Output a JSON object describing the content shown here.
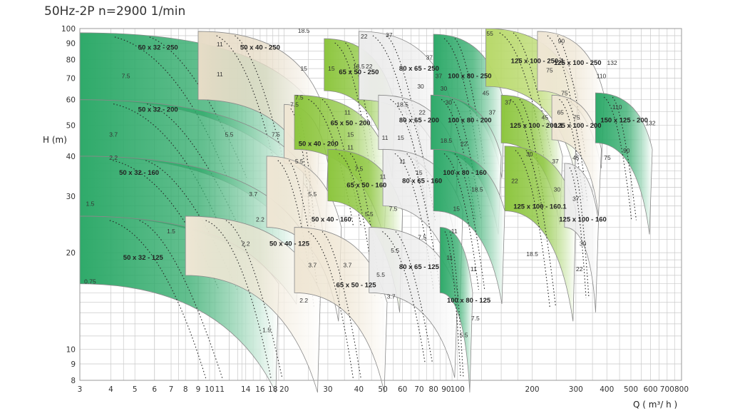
{
  "title": "50Hz-2P n=2900 1/min",
  "chart_data": {
    "type": "area",
    "title": "50Hz-2P n=2900 1/min",
    "xlabel": "Q ( m³/ h )",
    "ylabel": "H (m)",
    "x_scale": "log",
    "y_scale": "log",
    "xlim": [
      3,
      800
    ],
    "ylim": [
      8,
      100
    ],
    "x_ticks": [
      "3",
      "4",
      "5",
      "6",
      "7",
      "8",
      "9",
      "10",
      "11",
      "14",
      "16",
      "18",
      "20",
      "30",
      "40",
      "50",
      "60",
      "70",
      "80",
      "90",
      "100",
      "200",
      "300",
      "400",
      "500",
      "600",
      "700",
      "800"
    ],
    "x_tick_values": [
      3,
      4,
      5,
      6,
      7,
      8,
      9,
      10,
      11,
      14,
      16,
      18,
      20,
      30,
      40,
      50,
      60,
      70,
      80,
      90,
      100,
      200,
      300,
      400,
      500,
      600,
      700,
      800
    ],
    "y_ticks": [
      "8",
      "9",
      "10",
      "20",
      "30",
      "40",
      "50",
      "60",
      "70",
      "80",
      "90",
      "100"
    ],
    "y_tick_values": [
      8,
      9,
      10,
      20,
      30,
      40,
      50,
      60,
      70,
      80,
      90,
      100
    ],
    "pumps": [
      {
        "model": "50 x 32 - 250",
        "color": "#2faa6a",
        "q": [
          3,
          26
        ],
        "h_top": [
          97,
          58
        ],
        "h_bot": [
          60,
          38
        ],
        "label_q": 6.2,
        "label_h": 86,
        "kw": [
          {
            "t": "11",
            "q": 11,
            "h": 88
          },
          {
            "t": "11",
            "q": 11,
            "h": 71
          },
          {
            "t": "7.5",
            "q": 4.6,
            "h": 70
          }
        ]
      },
      {
        "model": "50 x 40 - 250",
        "color": "#e7dcc7",
        "q": [
          9,
          28
        ],
        "h_top": [
          98,
          60
        ],
        "h_bot": [
          60,
          40
        ],
        "label_q": 16,
        "label_h": 86,
        "kw": [
          {
            "t": "15",
            "q": 24,
            "h": 74
          }
        ]
      },
      {
        "model": "50 x 32 - 200",
        "color": "#2faa6a",
        "q": [
          3,
          24
        ],
        "h_top": [
          60,
          37
        ],
        "h_bot": [
          40,
          26
        ],
        "label_q": 6.2,
        "label_h": 55,
        "kw": [
          {
            "t": "3.7",
            "q": 4.1,
            "h": 46
          },
          {
            "t": "5.5",
            "q": 12,
            "h": 46
          },
          {
            "t": "7.5",
            "q": 18.5,
            "h": 46
          },
          {
            "t": "7.5",
            "q": 22,
            "h": 57
          },
          {
            "t": "2.2",
            "q": 4.1,
            "h": 39
          }
        ]
      },
      {
        "model": "50 x 32 - 160",
        "color": "#2faa6a",
        "q": [
          3,
          23
        ],
        "h_top": [
          40,
          24
        ],
        "h_bot": [
          26,
          17
        ],
        "label_q": 5.2,
        "label_h": 35,
        "kw": [
          {
            "t": "1.5",
            "q": 3.3,
            "h": 28
          },
          {
            "t": "3.7",
            "q": 15,
            "h": 30
          }
        ]
      },
      {
        "model": "50 x 32 - 125",
        "color": "#2faa6a",
        "q": [
          3,
          19
        ],
        "h_top": [
          26,
          16
        ],
        "h_bot": [
          16,
          9
        ],
        "label_q": 5.4,
        "label_h": 19,
        "kw": [
          {
            "t": "0.75",
            "q": 3.3,
            "h": 16
          },
          {
            "t": "1.5",
            "q": 7,
            "h": 23
          },
          {
            "t": "2.2",
            "q": 14,
            "h": 21
          },
          {
            "t": "1.5",
            "q": 17,
            "h": 11.3
          }
        ]
      },
      {
        "model": "50 x 40 - 200",
        "color": "#efe6d4",
        "q": [
          20,
          30
        ],
        "h_top": [
          58,
          38
        ],
        "h_bot": [
          38,
          25
        ],
        "label_q": 27.5,
        "label_h": 43,
        "kw": [
          {
            "t": "5.5",
            "q": 23,
            "h": 38
          }
        ]
      },
      {
        "model": "50 x 40 - 160",
        "color": "#efe6d4",
        "q": [
          17,
          34
        ],
        "h_top": [
          40,
          24
        ],
        "h_bot": [
          24,
          15
        ],
        "label_q": 31,
        "label_h": 25,
        "kw": [
          {
            "t": "2.2",
            "q": 16,
            "h": 25
          },
          {
            "t": "5.5",
            "q": 26,
            "h": 30
          }
        ]
      },
      {
        "model": "50 x 40 - 125",
        "color": "#efe6d4",
        "q": [
          8,
          28
        ],
        "h_top": [
          26,
          15
        ],
        "h_bot": [
          17,
          9
        ],
        "label_q": 21,
        "label_h": 21,
        "kw": [
          {
            "t": "3.7",
            "q": 26,
            "h": 18
          }
        ]
      },
      {
        "model": "65 x 50 - 250",
        "color": "#8dc63f",
        "q": [
          29,
          56
        ],
        "h_top": [
          93,
          58
        ],
        "h_bot": [
          64,
          42
        ],
        "label_q": 40,
        "label_h": 72,
        "kw": [
          {
            "t": "15",
            "q": 31,
            "h": 74
          },
          {
            "t": "18.5",
            "q": 40,
            "h": 75
          },
          {
            "t": "22",
            "q": 44,
            "h": 75
          },
          {
            "t": "18.5",
            "q": 24,
            "h": 97
          }
        ]
      },
      {
        "model": "65 x 50 - 200",
        "color": "#8dc63f",
        "q": [
          22,
          52
        ],
        "h_top": [
          62,
          40
        ],
        "h_bot": [
          42,
          27
        ],
        "label_q": 37,
        "label_h": 50,
        "kw": [
          {
            "t": "7.5",
            "q": 23,
            "h": 60
          },
          {
            "t": "11",
            "q": 36,
            "h": 54
          },
          {
            "t": "15",
            "q": 37,
            "h": 46
          },
          {
            "t": "11",
            "q": 37,
            "h": 42
          }
        ]
      },
      {
        "model": "65 x 50 - 160",
        "color": "#8dc63f",
        "q": [
          30,
          60
        ],
        "h_top": [
          42,
          27
        ],
        "h_bot": [
          29,
          16
        ],
        "label_q": 43,
        "label_h": 32,
        "kw": [
          {
            "t": "7.5",
            "q": 40,
            "h": 36
          },
          {
            "t": "11",
            "q": 50,
            "h": 34
          },
          {
            "t": "5.5",
            "q": 44,
            "h": 26
          }
        ]
      },
      {
        "model": "65 x 50 - 125",
        "color": "#efe6d4",
        "q": [
          22,
          52
        ],
        "h_top": [
          24,
          14
        ],
        "h_bot": [
          15,
          9
        ],
        "label_q": 39,
        "label_h": 15.6,
        "kw": [
          {
            "t": "3.7",
            "q": 36,
            "h": 18
          },
          {
            "t": "5.5",
            "q": 49,
            "h": 16.8
          },
          {
            "t": "2.2",
            "q": 24,
            "h": 14
          }
        ]
      },
      {
        "model": "80 x 65 - 250",
        "color": "#ececec",
        "q": [
          40,
          95
        ],
        "h_top": [
          98,
          58
        ],
        "h_bot": [
          60,
          40
        ],
        "label_q": 70,
        "label_h": 74,
        "kw": [
          {
            "t": "22",
            "q": 42,
            "h": 93
          },
          {
            "t": "30",
            "q": 71,
            "h": 65
          },
          {
            "t": "37",
            "q": 84,
            "h": 70
          }
        ]
      },
      {
        "model": "80 x 65 - 200",
        "color": "#ececec",
        "q": [
          48,
          100
        ],
        "h_top": [
          62,
          40
        ],
        "h_bot": [
          42,
          28
        ],
        "label_q": 70,
        "label_h": 51,
        "kw": [
          {
            "t": "18.5",
            "q": 60,
            "h": 57
          },
          {
            "t": "22",
            "q": 72,
            "h": 54
          },
          {
            "t": "15",
            "q": 59,
            "h": 45
          },
          {
            "t": "11",
            "q": 51,
            "h": 45
          }
        ]
      },
      {
        "model": "80 x 65 - 160",
        "color": "#ececec",
        "q": [
          50,
          105
        ],
        "h_top": [
          42,
          27
        ],
        "h_bot": [
          28,
          17
        ],
        "label_q": 72,
        "label_h": 33,
        "kw": [
          {
            "t": "11",
            "q": 60,
            "h": 38
          },
          {
            "t": "15",
            "q": 70,
            "h": 35
          },
          {
            "t": "7.5",
            "q": 55,
            "h": 27
          }
        ]
      },
      {
        "model": "80 x 65 - 125",
        "color": "#ececec",
        "q": [
          44,
          100
        ],
        "h_top": [
          24,
          15
        ],
        "h_bot": [
          15,
          10
        ],
        "label_q": 70,
        "label_h": 17.8,
        "kw": [
          {
            "t": "5.5",
            "q": 56,
            "h": 20
          },
          {
            "t": "7.5",
            "q": 72,
            "h": 22
          },
          {
            "t": "11",
            "q": 93,
            "h": 19
          },
          {
            "t": "3.7",
            "q": 54,
            "h": 14.4
          }
        ]
      },
      {
        "model": "100 x 80 - 250",
        "color": "#2faa6a",
        "q": [
          80,
          155
        ],
        "h_top": [
          96,
          58
        ],
        "h_bot": [
          62,
          42
        ],
        "label_q": 112,
        "label_h": 70,
        "kw": [
          {
            "t": "37",
            "q": 77,
            "h": 80
          },
          {
            "t": "30",
            "q": 88,
            "h": 64
          },
          {
            "t": "45",
            "q": 130,
            "h": 62
          }
        ]
      },
      {
        "model": "100 x 80 - 200",
        "color": "#2faa6a",
        "q": [
          78,
          150
        ],
        "h_top": [
          62,
          40
        ],
        "h_bot": [
          42,
          28
        ],
        "label_q": 112,
        "label_h": 51,
        "kw": [
          {
            "t": "30",
            "q": 92,
            "h": 58
          },
          {
            "t": "37",
            "q": 138,
            "h": 54
          },
          {
            "t": "18.5",
            "q": 90,
            "h": 44
          },
          {
            "t": "22",
            "q": 106,
            "h": 43
          }
        ]
      },
      {
        "model": "100 x 80 - 160",
        "color": "#2faa6a",
        "q": [
          80,
          155
        ],
        "h_top": [
          42,
          27
        ],
        "h_bot": [
          27,
          17
        ],
        "label_q": 107,
        "label_h": 35,
        "kw": [
          {
            "t": "18.5",
            "q": 120,
            "h": 31
          },
          {
            "t": "15",
            "q": 99,
            "h": 27
          },
          {
            "t": "11",
            "q": 97,
            "h": 23
          }
        ]
      },
      {
        "model": "100 x 80 - 125",
        "color": "#2faa6a",
        "q": [
          85,
          115
        ],
        "h_top": [
          24,
          15
        ],
        "h_bot": [
          15,
          9
        ],
        "label_q": 111,
        "label_h": 14,
        "kw": [
          {
            "t": "11",
            "q": 116,
            "h": 17.5
          },
          {
            "t": "7.5",
            "q": 118,
            "h": 12.3
          },
          {
            "t": "5.5",
            "q": 106,
            "h": 10.9
          }
        ]
      },
      {
        "model": "125 x 100 - 250.1",
        "color": "#b8d96a",
        "q": [
          130,
          305
        ],
        "h_top": [
          100,
          62
        ],
        "h_bot": [
          66,
          44
        ],
        "label_q": 210,
        "label_h": 78,
        "kw": [
          {
            "t": "37",
            "q": 53,
            "h": 94
          },
          {
            "t": "55",
            "q": 135,
            "h": 95
          },
          {
            "t": "75",
            "q": 235,
            "h": 73
          },
          {
            "t": "75",
            "q": 270,
            "h": 62
          }
        ]
      },
      {
        "model": "125 x 100 - 250",
        "color": "#efe6d4",
        "q": [
          210,
          390
        ],
        "h_top": [
          98,
          62
        ],
        "h_bot": [
          64,
          45
        ],
        "label_q": 305,
        "label_h": 77,
        "kw": [
          {
            "t": "90",
            "q": 262,
            "h": 90
          },
          {
            "t": "110",
            "q": 380,
            "h": 70
          },
          {
            "t": "132",
            "q": 420,
            "h": 77
          }
        ]
      },
      {
        "model": "125 x 100 - 200.1",
        "color": "#8dc63f",
        "q": [
          150,
          265
        ],
        "h_top": [
          62,
          40
        ],
        "h_bot": [
          44,
          30
        ],
        "label_q": 208,
        "label_h": 49,
        "kw": [
          {
            "t": "37",
            "q": 160,
            "h": 58
          },
          {
            "t": "45",
            "q": 225,
            "h": 52
          },
          {
            "t": "30",
            "q": 195,
            "h": 40
          },
          {
            "t": "37",
            "q": 248,
            "h": 38
          }
        ]
      },
      {
        "model": "125 x 100 - 200",
        "color": "#efe6d4",
        "q": [
          240,
          380
        ],
        "h_top": [
          62,
          42
        ],
        "h_bot": [
          45,
          32
        ],
        "label_q": 305,
        "label_h": 49,
        "kw": [
          {
            "t": "65",
            "q": 260,
            "h": 54
          },
          {
            "t": "75",
            "q": 302,
            "h": 52
          },
          {
            "t": "45",
            "q": 300,
            "h": 39
          }
        ]
      },
      {
        "model": "125 x 100 - 160.1",
        "color": "#8dc63f",
        "q": [
          155,
          300
        ],
        "h_top": [
          43,
          27
        ],
        "h_bot": [
          27,
          15
        ],
        "label_q": 215,
        "label_h": 27.4,
        "kw": [
          {
            "t": "22",
            "q": 170,
            "h": 33
          },
          {
            "t": "30",
            "q": 252,
            "h": 31
          },
          {
            "t": "18.5",
            "q": 200,
            "h": 19.5
          }
        ]
      },
      {
        "model": "125 x 100 - 160",
        "color": "#ececec",
        "q": [
          270,
          370
        ],
        "h_top": [
          38,
          25
        ],
        "h_bot": [
          24,
          16
        ],
        "label_q": 320,
        "label_h": 25,
        "kw": [
          {
            "t": "37",
            "q": 300,
            "h": 29
          },
          {
            "t": "30",
            "q": 320,
            "h": 21
          },
          {
            "t": "22",
            "q": 310,
            "h": 17.5
          }
        ]
      },
      {
        "model": "150 x 125 - 200",
        "color": "#2faa6a",
        "q": [
          360,
          610
        ],
        "h_top": [
          63,
          42
        ],
        "h_bot": [
          44,
          28
        ],
        "label_q": 470,
        "label_h": 51,
        "kw": [
          {
            "t": "110",
            "q": 440,
            "h": 56
          },
          {
            "t": "90",
            "q": 480,
            "h": 41
          },
          {
            "t": "75",
            "q": 402,
            "h": 39
          },
          {
            "t": "132",
            "q": 600,
            "h": 50
          }
        ]
      }
    ]
  }
}
